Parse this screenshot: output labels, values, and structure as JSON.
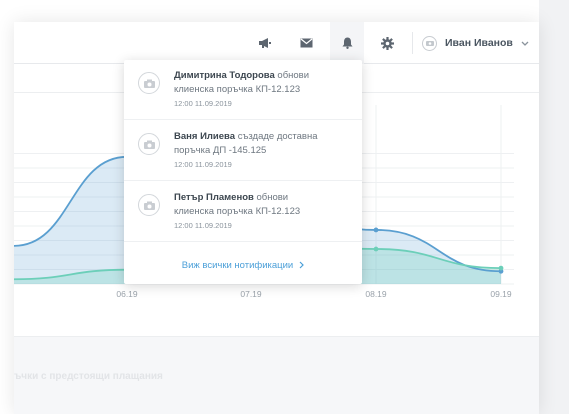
{
  "topbar": {
    "icons": [
      "megaphone-icon",
      "mail-icon",
      "bell-icon",
      "gear-icon"
    ],
    "active_icon": "bell-icon",
    "user_name": "Иван Иванов"
  },
  "notifications": [
    {
      "actor": "Димитрина Тодорова",
      "action": "обнови",
      "object": "клиенска поръчка КП-12.123",
      "time": "12:00 11.09.2019"
    },
    {
      "actor": "Ваня Илиева",
      "action": "създаде доставна",
      "object": "поръчка ДП -145.125",
      "time": "12:00 11.09.2019"
    },
    {
      "actor": "Петър Пламенов",
      "action": "обнови",
      "object": "клиенска поръчка КП-12.123",
      "time": "12:00 11.09.2019"
    }
  ],
  "view_all_label": "Виж всички нотификации",
  "bottom_section_title": "ъчки с предстоящи плащания",
  "colors": {
    "blue": "#5a9fd0",
    "teal": "#6ccfb9",
    "link": "#4b9fd8"
  },
  "chart_data": {
    "type": "area",
    "categories": [
      "06.19",
      "07.19",
      "08.19",
      "09.19"
    ],
    "series": [
      {
        "values": [
          80,
          50,
          34,
          8
        ]
      },
      {
        "values": [
          9,
          24,
          22,
          10
        ]
      }
    ],
    "ylim": [
      0,
      100
    ],
    "grid": true
  }
}
